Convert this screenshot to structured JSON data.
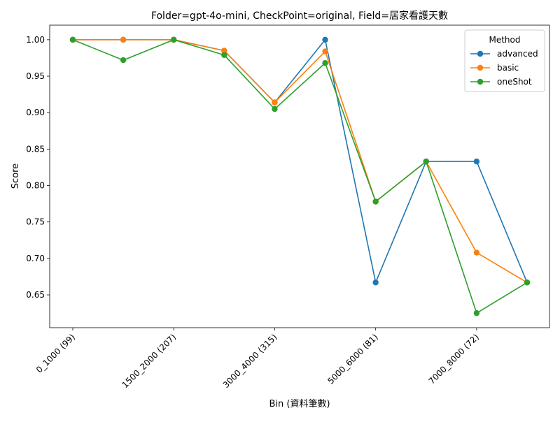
{
  "chart_data": {
    "type": "line",
    "title": "Folder=gpt-4o-mini, CheckPoint=original, Field=居家看護天數",
    "xlabel": "Bin (資料筆數)",
    "ylabel": "Score",
    "x_tick_labels": [
      "0_1000 (99)",
      "1500_2000 (207)",
      "3000_4000 (315)",
      "5000_6000 (81)",
      "7000_8000 (72)"
    ],
    "x_tick_positions": [
      0,
      2,
      4,
      6,
      8
    ],
    "x_count": 10,
    "ylim": [
      0.605,
      1.02
    ],
    "y_ticks": [
      "0.65",
      "0.70",
      "0.75",
      "0.80",
      "0.85",
      "0.90",
      "0.95",
      "1.00"
    ],
    "grid": false,
    "legend": {
      "title": "Method",
      "placement": "top-right"
    },
    "series": [
      {
        "name": "advanced",
        "color": "#1f77b4",
        "values": [
          1.0,
          1.0,
          1.0,
          0.985,
          0.914,
          1.0,
          0.667,
          0.833,
          0.833,
          0.667
        ]
      },
      {
        "name": "basic",
        "color": "#ff7f0e",
        "values": [
          1.0,
          1.0,
          1.0,
          0.985,
          0.914,
          0.984,
          0.778,
          0.833,
          0.708,
          0.667
        ]
      },
      {
        "name": "oneShot",
        "color": "#2ca02c",
        "values": [
          1.0,
          0.972,
          1.0,
          0.979,
          0.905,
          0.968,
          0.778,
          0.833,
          0.625,
          0.667
        ]
      }
    ]
  }
}
